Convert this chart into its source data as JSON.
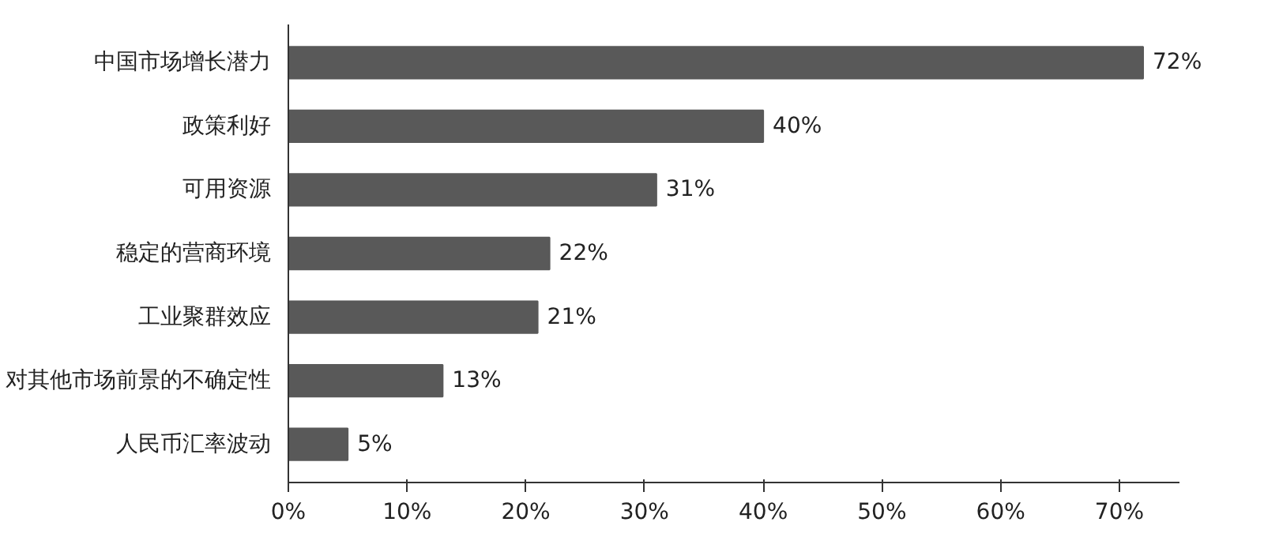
{
  "chart_data": {
    "type": "bar",
    "orientation": "horizontal",
    "categories": [
      "中国市场增长潜力",
      "政策利好",
      "可用资源",
      "稳定的营商环境",
      "工业聚群效应",
      "对其他市场前景的不确定性",
      "人民币汇率波动"
    ],
    "values": [
      72,
      40,
      31,
      22,
      21,
      13,
      5
    ],
    "value_labels": [
      "72%",
      "40%",
      "31%",
      "22%",
      "21%",
      "13%",
      "5%"
    ],
    "color": "#595959",
    "xlim": [
      0,
      75
    ],
    "xticks": [
      {
        "value": 0,
        "label": "0%"
      },
      {
        "value": 10,
        "label": "10%"
      },
      {
        "value": 20,
        "label": "20%"
      },
      {
        "value": 30,
        "label": "30%"
      },
      {
        "value": 40,
        "label": "40%"
      },
      {
        "value": 50,
        "label": "50%"
      },
      {
        "value": 60,
        "label": "60%"
      },
      {
        "value": 70,
        "label": "70%"
      }
    ],
    "grid": false
  }
}
